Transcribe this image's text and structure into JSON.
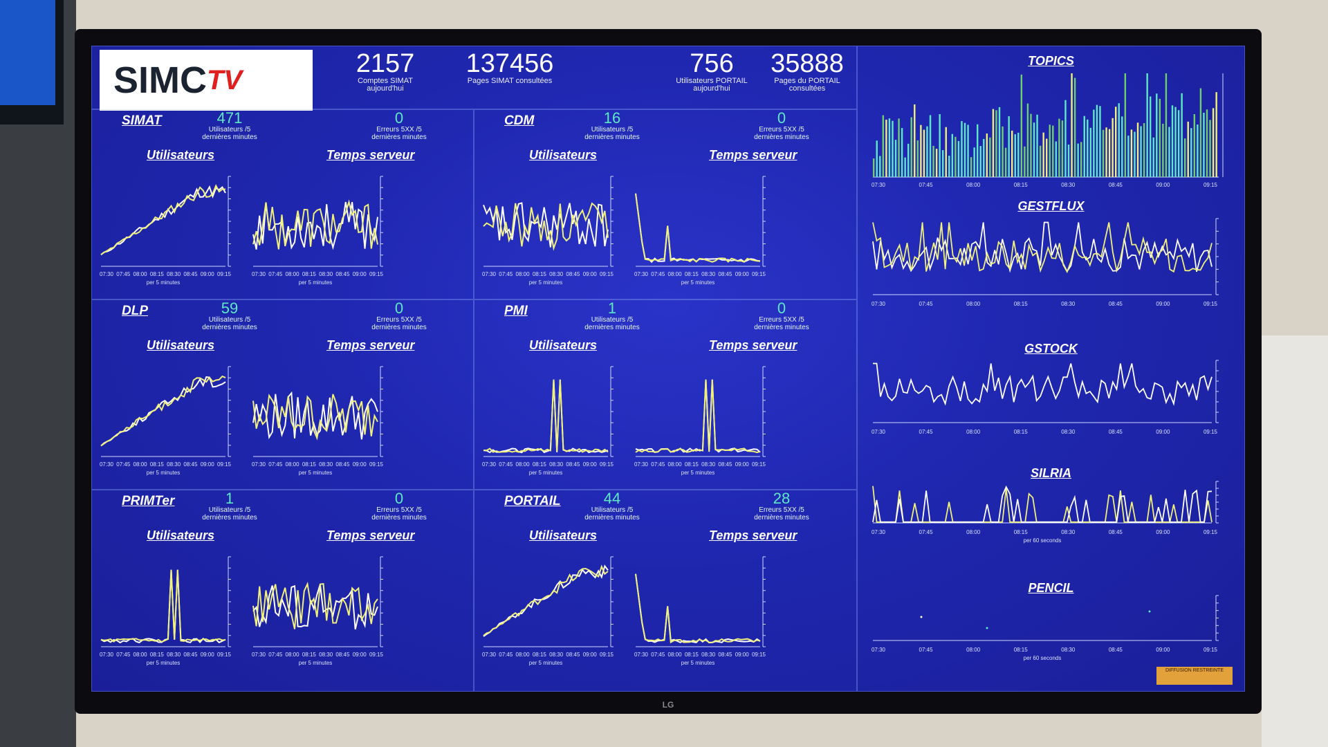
{
  "header": {
    "logo_text": "SIMC",
    "logo_tv": "TV",
    "kpis": [
      {
        "value": "2157",
        "label1": "Comptes SIMAT",
        "label2": "aujourd'hui"
      },
      {
        "value": "137456",
        "label1": "Pages SIMAT consultées",
        "label2": ""
      },
      {
        "value": "756",
        "label1": "Utilisateurs PORTAIL",
        "label2": "aujourd'hui"
      },
      {
        "value": "35888",
        "label1": "Pages du PORTAIL",
        "label2": "consultées"
      }
    ]
  },
  "common": {
    "users_title": "Utilisateurs",
    "server_title": "Temps serveur",
    "users_label1": "Utilisateurs /5",
    "users_label2": "dernières minutes",
    "errors_label1": "Erreurs 5XX /5",
    "errors_label2": "dernières minutes",
    "per5": "per 5 minutes",
    "per60": "per 60 seconds",
    "times": [
      "07:30",
      "07:45",
      "08:00",
      "08:15",
      "08:30",
      "08:45",
      "09:00",
      "09:15"
    ]
  },
  "panels": [
    {
      "name": "SIMAT",
      "users": "471",
      "errors": "0"
    },
    {
      "name": "CDM",
      "users": "16",
      "errors": "0"
    },
    {
      "name": "DLP",
      "users": "59",
      "errors": "0"
    },
    {
      "name": "PMI",
      "users": "1",
      "errors": "0"
    },
    {
      "name": "PRIMTer",
      "users": "1",
      "errors": "0"
    },
    {
      "name": "PORTAIL",
      "users": "44",
      "errors": "28"
    }
  ],
  "right": {
    "topics": "TOPICS",
    "gestflux": "GESTFLUX",
    "gstock": "GSTOCK",
    "silria": "SILRIA",
    "pencil": "PENCIL"
  },
  "badge": "DIFFUSION RESTREINTE",
  "tv_brand": "LG",
  "colors": {
    "accent": "#5ee8c6",
    "line": "#ffffff",
    "line2": "#f0f07a"
  }
}
